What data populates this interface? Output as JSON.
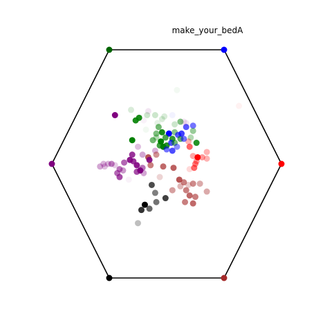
{
  "chart_data": {
    "type": "scatter",
    "title": "make_your_bedA",
    "grid": false,
    "axes_visible": false,
    "frame_shape": "hexagon",
    "frame_color": "#000000",
    "vertices": [
      {
        "x": 1.0,
        "y": 0.0,
        "color": "#ff0000"
      },
      {
        "x": 0.5,
        "y": 0.866,
        "color": "#0000ff"
      },
      {
        "x": -0.5,
        "y": 0.866,
        "color": "#006400"
      },
      {
        "x": -1.0,
        "y": 0.0,
        "color": "#800080"
      },
      {
        "x": -0.5,
        "y": -0.866,
        "color": "#000000"
      },
      {
        "x": 0.5,
        "y": -0.866,
        "color": "#a52a2a"
      }
    ],
    "points": [
      {
        "x": 0.63,
        "y": 0.44,
        "color": "#ff0000",
        "alpha": 0.05
      },
      {
        "x": 0.09,
        "y": 0.56,
        "color": "#008000",
        "alpha": 0.05
      },
      {
        "x": -0.31,
        "y": 0.41,
        "color": "#008000",
        "alpha": 0.15
      },
      {
        "x": -0.17,
        "y": 0.37,
        "color": "#008000",
        "alpha": 0.2
      },
      {
        "x": -0.1,
        "y": 0.37,
        "color": "#008000",
        "alpha": 0.2
      },
      {
        "x": -0.04,
        "y": 0.34,
        "color": "#008000",
        "alpha": 0.15
      },
      {
        "x": 0.07,
        "y": 0.3,
        "color": "#008000",
        "alpha": 0.2
      },
      {
        "x": -0.2,
        "y": 0.33,
        "color": "#800080",
        "alpha": 0.05
      },
      {
        "x": -0.16,
        "y": 0.4,
        "color": "#800080",
        "alpha": 0.1
      },
      {
        "x": -0.07,
        "y": 0.28,
        "color": "#008000",
        "alpha": 0.55
      },
      {
        "x": -0.08,
        "y": 0.31,
        "color": "#008000",
        "alpha": 0.1
      },
      {
        "x": -0.02,
        "y": 0.36,
        "color": "#008000",
        "alpha": 0.15
      },
      {
        "x": 0.05,
        "y": 0.37,
        "color": "#0000ff",
        "alpha": 0.05
      },
      {
        "x": 0.12,
        "y": 0.32,
        "color": "#008000",
        "alpha": 0.5
      },
      {
        "x": 0.17,
        "y": 0.28,
        "color": "#0000ff",
        "alpha": 0.65
      },
      {
        "x": 0.15,
        "y": 0.32,
        "color": "#800080",
        "alpha": 0.1
      },
      {
        "x": 0.23,
        "y": 0.29,
        "color": "#0000ff",
        "alpha": 0.55
      },
      {
        "x": 0.23,
        "y": 0.25,
        "color": "#008000",
        "alpha": 0.4
      },
      {
        "x": 0.21,
        "y": 0.2,
        "color": "#008000",
        "alpha": 0.3
      },
      {
        "x": 0.26,
        "y": 0.16,
        "color": "#008000",
        "alpha": 0.85
      },
      {
        "x": 0.19,
        "y": 0.17,
        "color": "#ff0000",
        "alpha": 0.3
      },
      {
        "x": 0.17,
        "y": 0.31,
        "color": "#800080",
        "alpha": 0.1
      },
      {
        "x": -0.45,
        "y": 0.37,
        "color": "#800080",
        "alpha": 1.0
      },
      {
        "x": -0.24,
        "y": 0.35,
        "color": "#008000",
        "alpha": 0.9
      },
      {
        "x": -0.27,
        "y": 0.33,
        "color": "#008000",
        "alpha": 0.9
      },
      {
        "x": -0.18,
        "y": 0.26,
        "color": "#008000",
        "alpha": 0.05
      },
      {
        "x": -0.3,
        "y": 0.18,
        "color": "#008000",
        "alpha": 1.0
      },
      {
        "x": -0.12,
        "y": 0.18,
        "color": "#008000",
        "alpha": 0.55
      },
      {
        "x": -0.09,
        "y": 0.23,
        "color": "#008000",
        "alpha": 0.5
      },
      {
        "x": -0.04,
        "y": 0.24,
        "color": "#008000",
        "alpha": 0.9
      },
      {
        "x": 0.02,
        "y": 0.23,
        "color": "#0000ff",
        "alpha": 1.0
      },
      {
        "x": -0.01,
        "y": 0.2,
        "color": "#008000",
        "alpha": 0.7
      },
      {
        "x": 0.05,
        "y": 0.19,
        "color": "#008000",
        "alpha": 0.8
      },
      {
        "x": 0.07,
        "y": 0.24,
        "color": "#008000",
        "alpha": 0.45
      },
      {
        "x": 0.1,
        "y": 0.22,
        "color": "#0000ff",
        "alpha": 0.65
      },
      {
        "x": 0.12,
        "y": 0.19,
        "color": "#008000",
        "alpha": 0.6
      },
      {
        "x": 0.15,
        "y": 0.19,
        "color": "#0000ff",
        "alpha": 0.55
      },
      {
        "x": 0.13,
        "y": 0.23,
        "color": "#0000ff",
        "alpha": 0.75
      },
      {
        "x": -0.09,
        "y": 0.2,
        "color": "#008000",
        "alpha": 0.3
      },
      {
        "x": -0.05,
        "y": 0.17,
        "color": "#008000",
        "alpha": 1.0
      },
      {
        "x": -0.06,
        "y": 0.14,
        "color": "#008000",
        "alpha": 0.75
      },
      {
        "x": -0.03,
        "y": 0.13,
        "color": "#008000",
        "alpha": 1.0
      },
      {
        "x": 0.0,
        "y": 0.14,
        "color": "#008000",
        "alpha": 0.85
      },
      {
        "x": 0.04,
        "y": 0.16,
        "color": "#0000ff",
        "alpha": 0.7
      },
      {
        "x": 0.07,
        "y": 0.16,
        "color": "#008000",
        "alpha": 0.55
      },
      {
        "x": 0.0,
        "y": 0.11,
        "color": "#0000ff",
        "alpha": 0.55
      },
      {
        "x": 0.05,
        "y": 0.1,
        "color": "#0000ff",
        "alpha": 0.7
      },
      {
        "x": 0.09,
        "y": 0.13,
        "color": "#0000ff",
        "alpha": 0.45
      },
      {
        "x": -0.1,
        "y": 0.1,
        "color": "#800080",
        "alpha": 0.3
      },
      {
        "x": -0.25,
        "y": 0.13,
        "color": "#800080",
        "alpha": 0.25
      },
      {
        "x": -0.3,
        "y": 0.07,
        "color": "#800080",
        "alpha": 0.8
      },
      {
        "x": -0.29,
        "y": 0.02,
        "color": "#800080",
        "alpha": 0.8
      },
      {
        "x": -0.32,
        "y": 0.03,
        "color": "#800080",
        "alpha": 0.9
      },
      {
        "x": -0.21,
        "y": 0.07,
        "color": "#800080",
        "alpha": 0.35
      },
      {
        "x": -0.16,
        "y": 0.05,
        "color": "#a52a2a",
        "alpha": 0.8
      },
      {
        "x": -0.09,
        "y": 0.07,
        "color": "#a52a2a",
        "alpha": 0.5
      },
      {
        "x": -0.15,
        "y": 0.03,
        "color": "#800080",
        "alpha": 0.9
      },
      {
        "x": 0.2,
        "y": 0.13,
        "color": "#ff0000",
        "alpha": 0.6
      },
      {
        "x": 0.27,
        "y": 0.05,
        "color": "#ff0000",
        "alpha": 1.0
      },
      {
        "x": 0.31,
        "y": 0.05,
        "color": "#ff0000",
        "alpha": 0.4
      },
      {
        "x": 0.35,
        "y": 0.09,
        "color": "#ff0000",
        "alpha": 0.3
      },
      {
        "x": 0.35,
        "y": 0.04,
        "color": "#ff0000",
        "alpha": 0.3
      },
      {
        "x": 0.26,
        "y": 0.02,
        "color": "#ff0000",
        "alpha": 0.4
      },
      {
        "x": 0.23,
        "y": 0.06,
        "color": "#ff0000",
        "alpha": 0.35
      },
      {
        "x": 0.24,
        "y": -0.03,
        "color": "#ff0000",
        "alpha": 0.6
      },
      {
        "x": 0.25,
        "y": 0.0,
        "color": "#ff0000",
        "alpha": 0.5
      },
      {
        "x": 0.2,
        "y": -0.04,
        "color": "#ff0000",
        "alpha": 0.15
      },
      {
        "x": -0.37,
        "y": 0.01,
        "color": "#800080",
        "alpha": 0.6
      },
      {
        "x": -0.41,
        "y": -0.04,
        "color": "#800080",
        "alpha": 0.55
      },
      {
        "x": -0.45,
        "y": -0.01,
        "color": "#800080",
        "alpha": 0.2
      },
      {
        "x": -0.48,
        "y": 0.0,
        "color": "#800080",
        "alpha": 0.5
      },
      {
        "x": -0.51,
        "y": 0.0,
        "color": "#800080",
        "alpha": 0.3
      },
      {
        "x": -0.55,
        "y": 0.0,
        "color": "#800080",
        "alpha": 0.3
      },
      {
        "x": -0.58,
        "y": -0.02,
        "color": "#800080",
        "alpha": 0.35
      },
      {
        "x": -0.54,
        "y": -0.02,
        "color": "#800080",
        "alpha": 0.25
      },
      {
        "x": -0.43,
        "y": -0.07,
        "color": "#800080",
        "alpha": 0.6
      },
      {
        "x": -0.41,
        "y": -0.1,
        "color": "#800080",
        "alpha": 0.7
      },
      {
        "x": -0.38,
        "y": -0.05,
        "color": "#800080",
        "alpha": 0.4
      },
      {
        "x": -0.26,
        "y": -0.01,
        "color": "#800080",
        "alpha": 0.9
      },
      {
        "x": -0.23,
        "y": -0.05,
        "color": "#800080",
        "alpha": 1.0
      },
      {
        "x": -0.26,
        "y": -0.06,
        "color": "#800080",
        "alpha": 0.7
      },
      {
        "x": -0.21,
        "y": -0.03,
        "color": "#800080",
        "alpha": 0.55
      },
      {
        "x": -0.2,
        "y": -0.07,
        "color": "#800080",
        "alpha": 0.35
      },
      {
        "x": -0.14,
        "y": -0.01,
        "color": "#a52a2a",
        "alpha": 0.6
      },
      {
        "x": -0.03,
        "y": -0.02,
        "color": "#a52a2a",
        "alpha": 0.7
      },
      {
        "x": 0.06,
        "y": -0.03,
        "color": "#a52a2a",
        "alpha": 0.75
      },
      {
        "x": -0.33,
        "y": -0.12,
        "color": "#800080",
        "alpha": 0.05
      },
      {
        "x": -0.06,
        "y": -0.1,
        "color": "#a52a2a",
        "alpha": 0.2
      },
      {
        "x": 0.11,
        "y": -0.12,
        "color": "#a52a2a",
        "alpha": 0.8
      },
      {
        "x": 0.15,
        "y": -0.14,
        "color": "#a52a2a",
        "alpha": 0.6
      },
      {
        "x": 0.19,
        "y": -0.16,
        "color": "#a52a2a",
        "alpha": 0.25
      },
      {
        "x": 0.23,
        "y": -0.15,
        "color": "#a52a2a",
        "alpha": 0.55
      },
      {
        "x": 0.29,
        "y": -0.15,
        "color": "#a52a2a",
        "alpha": 0.4
      },
      {
        "x": 0.35,
        "y": -0.21,
        "color": "#a52a2a",
        "alpha": 0.4
      },
      {
        "x": 0.12,
        "y": -0.17,
        "color": "#a52a2a",
        "alpha": 0.35
      },
      {
        "x": 0.17,
        "y": -0.2,
        "color": "#a52a2a",
        "alpha": 0.6
      },
      {
        "x": -0.13,
        "y": -0.16,
        "color": "#000000",
        "alpha": 0.7
      },
      {
        "x": -0.1,
        "y": -0.22,
        "color": "#000000",
        "alpha": 0.5
      },
      {
        "x": 0.05,
        "y": -0.2,
        "color": "#a52a2a",
        "alpha": 0.45
      },
      {
        "x": 0.16,
        "y": -0.29,
        "color": "#a52a2a",
        "alpha": 0.6
      },
      {
        "x": 0.2,
        "y": -0.24,
        "color": "#a52a2a",
        "alpha": 0.7
      },
      {
        "x": 0.25,
        "y": -0.25,
        "color": "#a52a2a",
        "alpha": 0.6
      },
      {
        "x": 0.23,
        "y": -0.3,
        "color": "#a52a2a",
        "alpha": 0.7
      },
      {
        "x": -0.01,
        "y": -0.26,
        "color": "#000000",
        "alpha": 0.75
      },
      {
        "x": -0.09,
        "y": -0.29,
        "color": "#000000",
        "alpha": 0.55
      },
      {
        "x": -0.19,
        "y": -0.31,
        "color": "#000000",
        "alpha": 1.0
      },
      {
        "x": -0.22,
        "y": -0.35,
        "color": "#000000",
        "alpha": 0.8
      },
      {
        "x": -0.15,
        "y": -0.34,
        "color": "#000000",
        "alpha": 0.6
      },
      {
        "x": -0.25,
        "y": -0.45,
        "color": "#000000",
        "alpha": 0.25
      }
    ]
  }
}
